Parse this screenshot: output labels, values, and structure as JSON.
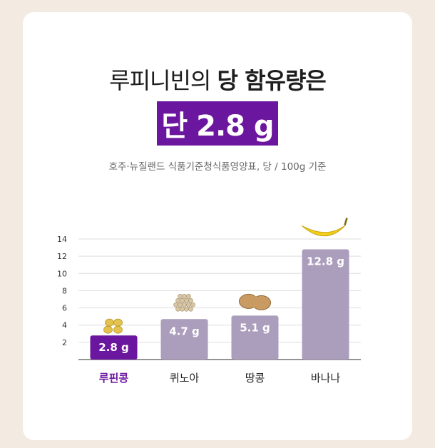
{
  "headline": {
    "prefix": "루피니빈의",
    "bold": "당 함유량은",
    "badge": "단 2.8 g"
  },
  "source": "호주·뉴질랜드 식품기준청식품영양표, 당 / 100g 기준",
  "colors": {
    "accent": "#6b169e",
    "bar_primary": "#6b169e",
    "bar_other": "#ab9dbc",
    "background": "#f3ebe1"
  },
  "chart_data": {
    "type": "bar",
    "categories": [
      "루핀콩",
      "퀴노아",
      "땅콩",
      "바나나"
    ],
    "values": [
      2.8,
      4.7,
      5.1,
      12.8
    ],
    "data_labels": [
      "2.8 g",
      "4.7 g",
      "5.1 g",
      "12.8 g"
    ],
    "highlight_index": 0,
    "icons": [
      "lupin-beans-icon",
      "quinoa-icon",
      "peanut-icon",
      "banana-icon"
    ],
    "yticks": [
      2,
      4,
      6,
      8,
      10,
      12,
      14
    ],
    "ylim": [
      0,
      14
    ],
    "grid": true,
    "title": "",
    "xlabel": "",
    "ylabel": ""
  }
}
